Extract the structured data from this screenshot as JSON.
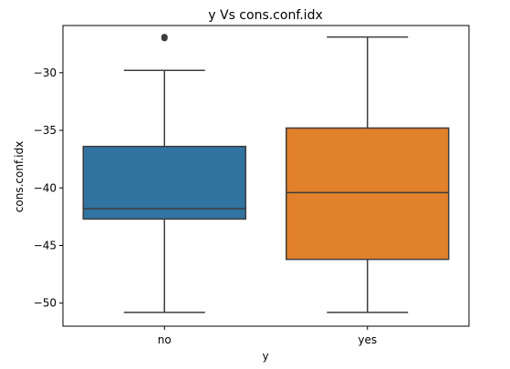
{
  "chart_data": {
    "type": "box",
    "title": "y Vs cons.conf.idx",
    "xlabel": "y",
    "ylabel": "cons.conf.idx",
    "ylim": [
      -52.0,
      -25.9
    ],
    "yticks": [
      -30,
      -35,
      -40,
      -45,
      -50
    ],
    "ytick_labels": [
      "−30",
      "−35",
      "−40",
      "−45",
      "−50"
    ],
    "categories": [
      "no",
      "yes"
    ],
    "boxes": [
      {
        "category": "no",
        "whisker_low": -50.8,
        "q1": -42.7,
        "median": -41.8,
        "q3": -36.4,
        "whisker_high": -29.8,
        "outliers": [
          -26.9,
          -27.0
        ],
        "color": "#3274a1"
      },
      {
        "category": "yes",
        "whisker_low": -50.8,
        "q1": -46.2,
        "median": -40.4,
        "q3": -34.8,
        "whisker_high": -26.9,
        "outliers": [],
        "color": "#e1812c"
      }
    ],
    "grid": false,
    "legend": "none"
  }
}
